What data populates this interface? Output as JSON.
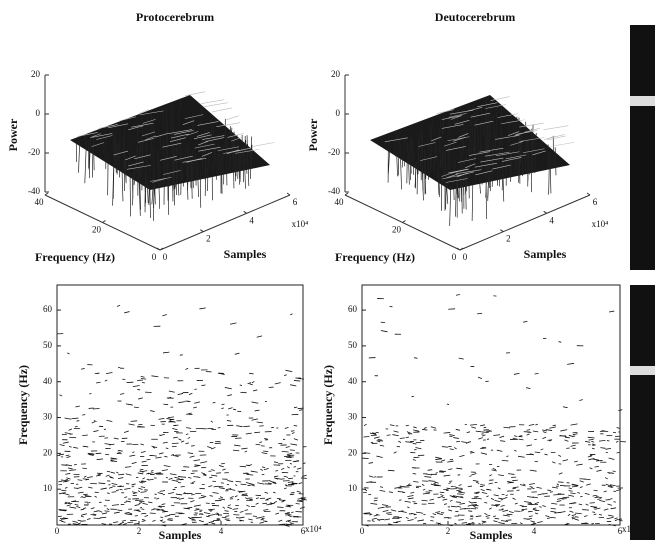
{
  "chart_data": [
    {
      "type": "surface",
      "title": "Protocerebrum",
      "zlabel": "Power",
      "ylabel": "Frequency (Hz)",
      "xlabel": "Samples",
      "x_multiplier": "x10⁴",
      "zlim": [
        -40,
        20
      ],
      "zticks": [
        20,
        0,
        -20,
        -40
      ],
      "ylim": [
        0,
        40
      ],
      "yticks": [
        40,
        20,
        0
      ],
      "xlim": [
        0,
        6
      ],
      "xticks": [
        0,
        2,
        4,
        6
      ]
    },
    {
      "type": "surface",
      "title": "Deutocerebrum",
      "zlabel": "Power",
      "ylabel": "Frequency (Hz)",
      "xlabel": "Samples",
      "x_multiplier": "x10⁴",
      "zlim": [
        -40,
        20
      ],
      "zticks": [
        20,
        0,
        -20,
        -40
      ],
      "ylim": [
        0,
        40
      ],
      "yticks": [
        40,
        20,
        0
      ],
      "xlim": [
        0,
        6
      ],
      "xticks": [
        0,
        2,
        4,
        6
      ]
    },
    {
      "type": "contour",
      "ylabel": "Frequency (Hz)",
      "xlabel": "Samples",
      "x_multiplier": "x10⁴",
      "ylim": [
        0,
        67
      ],
      "yticks": [
        10,
        20,
        30,
        40,
        50,
        60
      ],
      "xlim": [
        0,
        6
      ],
      "xticks": [
        0,
        2,
        4,
        6
      ]
    },
    {
      "type": "contour",
      "ylabel": "Frequency (Hz)",
      "xlabel": "Samples",
      "x_multiplier": "x10⁴",
      "ylim": [
        0,
        67
      ],
      "yticks": [
        10,
        20,
        30,
        40,
        50,
        60
      ],
      "xlim": [
        0,
        6
      ],
      "xticks": [
        0,
        2,
        4,
        6
      ]
    }
  ]
}
